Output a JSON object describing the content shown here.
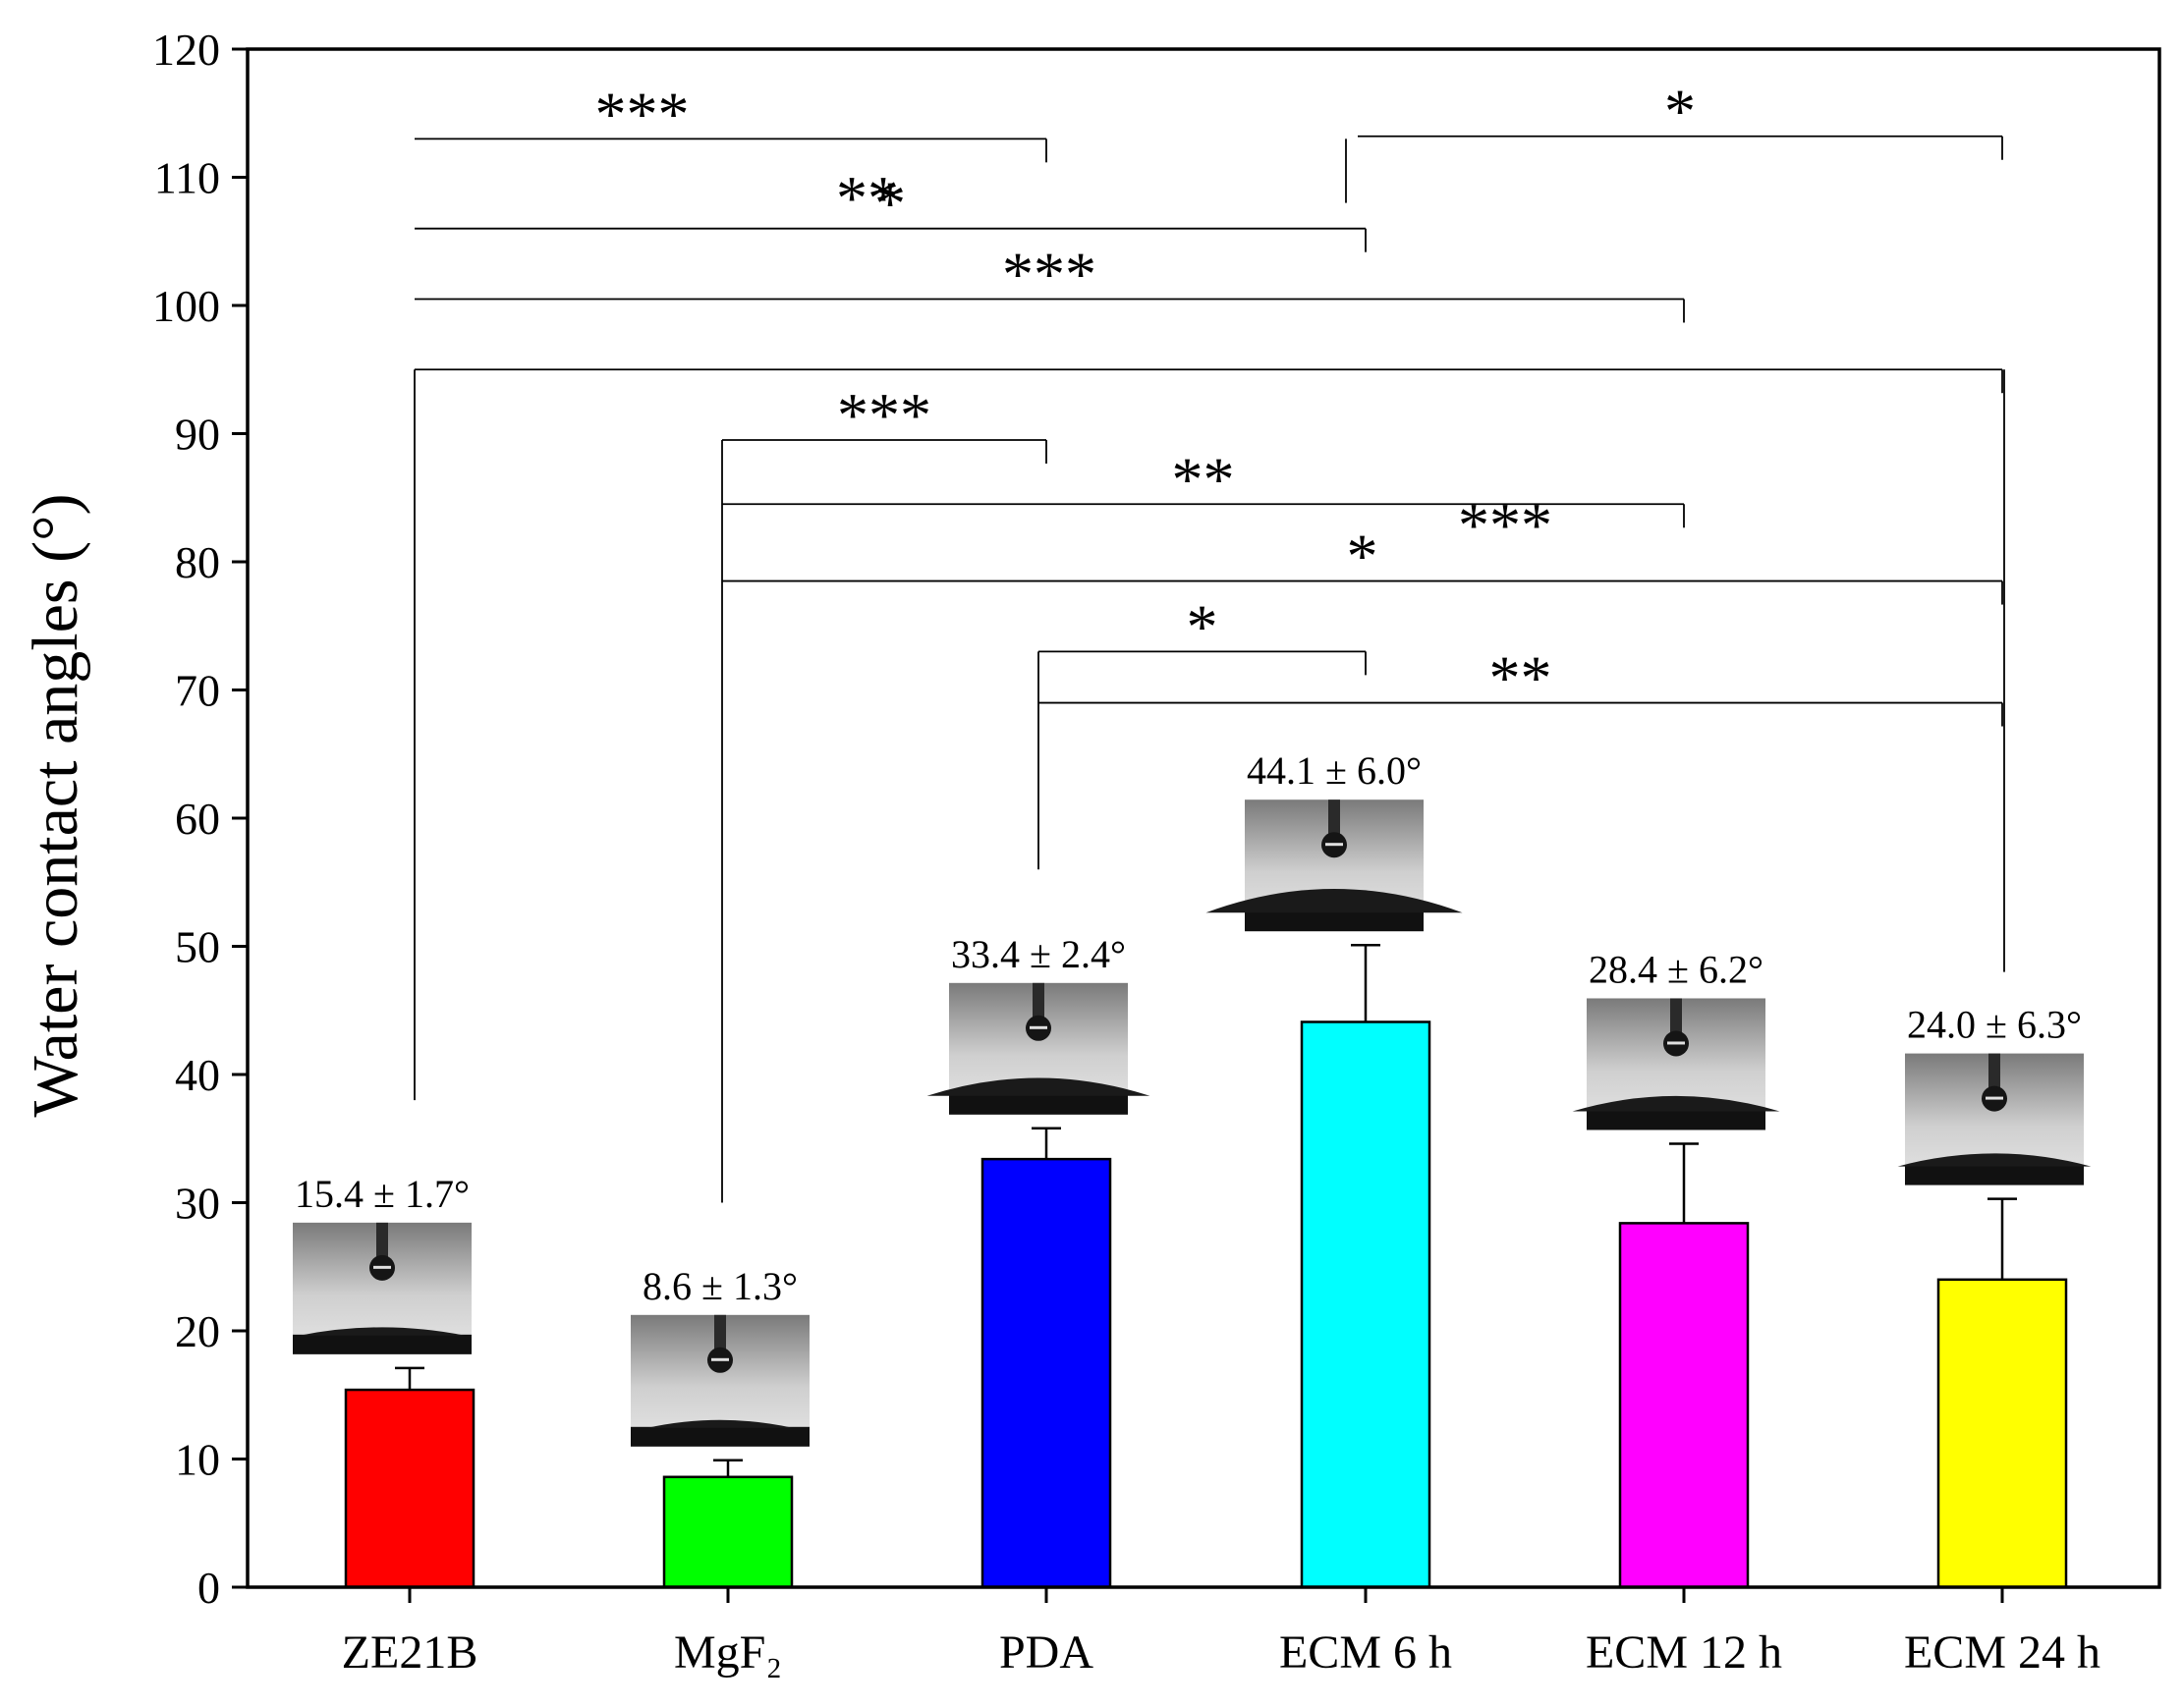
{
  "chart_data": {
    "type": "bar",
    "title": "",
    "xlabel": "",
    "ylabel": "Water contact angles (°)",
    "ylim": [
      0,
      120
    ],
    "yticks": [
      0,
      10,
      20,
      30,
      40,
      50,
      60,
      70,
      80,
      90,
      100,
      110,
      120
    ],
    "grid": false,
    "categories": [
      "ZE21B",
      "MgF₂",
      "PDA",
      "ECM 6 h",
      "ECM 12 h",
      "ECM 24 h"
    ],
    "values": [
      15.4,
      8.6,
      33.4,
      44.1,
      28.4,
      24.0
    ],
    "errors": [
      1.7,
      1.3,
      2.4,
      6.0,
      6.2,
      6.3
    ],
    "colors": [
      "#ff0000",
      "#00ff00",
      "#0000ff",
      "#00ffff",
      "#ff00ff",
      "#ffff00"
    ],
    "value_labels": [
      "15.4 ± 1.7°",
      "8.6 ± 1.3°",
      "33.4 ± 2.4°",
      "44.1 ± 6.0°",
      "28.4 ± 6.2°",
      "24.0 ± 6.3°"
    ],
    "droplet_insets": [
      {
        "category": "ZE21B",
        "icon": "water-droplet-photo-icon"
      },
      {
        "category": "MgF₂",
        "icon": "water-droplet-photo-icon"
      },
      {
        "category": "PDA",
        "icon": "water-droplet-photo-icon"
      },
      {
        "category": "ECM 6 h",
        "icon": "water-droplet-photo-icon"
      },
      {
        "category": "ECM 12 h",
        "icon": "water-droplet-photo-icon"
      },
      {
        "category": "ECM 24 h",
        "icon": "water-droplet-photo-icon"
      }
    ],
    "significance": [
      {
        "from": 0,
        "to": 2,
        "y": 113,
        "label": "***"
      },
      {
        "from": 0,
        "to": 3,
        "y": 106,
        "label": "*"
      },
      {
        "from": 0,
        "to": 4,
        "y": 100.5,
        "label": "***"
      },
      {
        "from": 0,
        "to": 5,
        "y": 95,
        "label": ""
      },
      {
        "from": 1,
        "to": 2,
        "y": 89.5,
        "label": "***"
      },
      {
        "from": 1,
        "to": 4,
        "y": 84.5,
        "label": "**"
      },
      {
        "from": 1,
        "to": 5,
        "y": 78.5,
        "label": "*"
      },
      {
        "from": 2,
        "to": 3,
        "y": 73,
        "label": "*"
      },
      {
        "from": 2,
        "to": 5,
        "y": 69,
        "label": "**"
      },
      {
        "from": 3,
        "to": 5,
        "y": 113.2,
        "label": "*"
      }
    ],
    "extra_stars": [
      {
        "label": "**",
        "between": [
          1,
          2
        ],
        "y": 107.5
      },
      {
        "label": "***",
        "between": [
          3,
          4
        ],
        "y": 82
      }
    ]
  }
}
